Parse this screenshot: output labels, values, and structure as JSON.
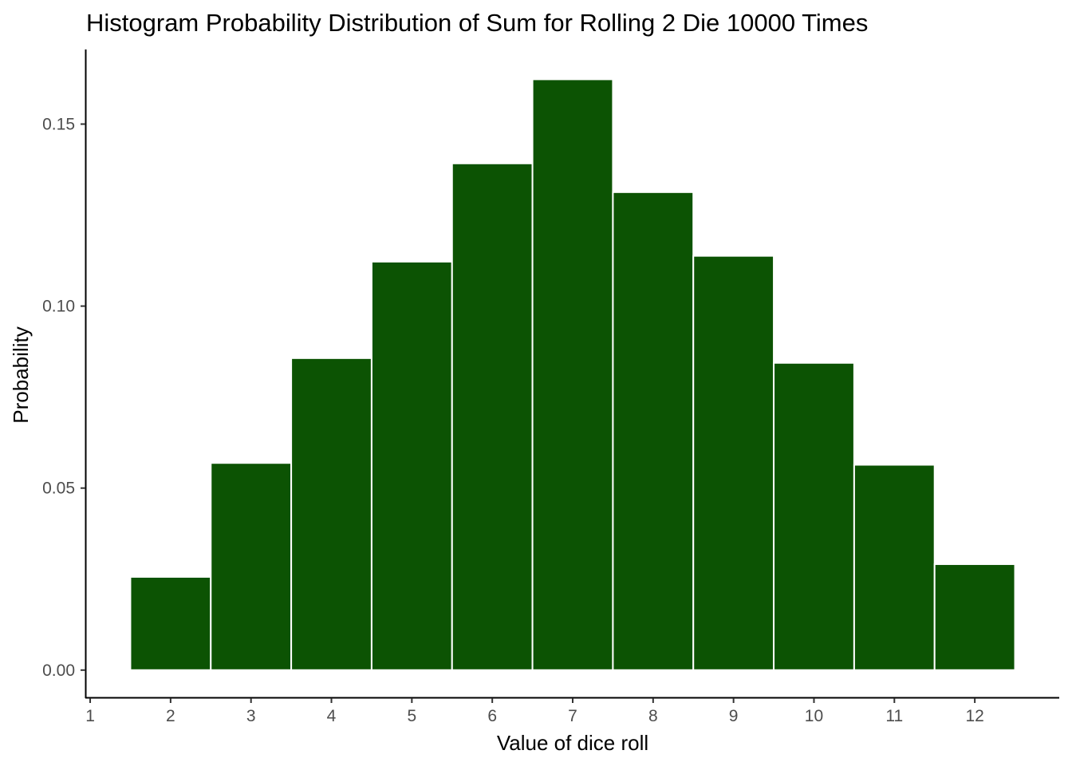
{
  "chart_data": {
    "type": "bar",
    "title": "Histogram Probability Distribution of Sum for Rolling 2 Die 10000 Times",
    "xlabel": "Value of dice roll",
    "ylabel": "Probability",
    "x_ticks": [
      "1",
      "2",
      "3",
      "4",
      "5",
      "6",
      "7",
      "8",
      "9",
      "10",
      "11",
      "12"
    ],
    "xlim": [
      0.95,
      13.05
    ],
    "ylim": [
      -0.0075,
      0.1705
    ],
    "y_ticks": [
      {
        "value": 0.0,
        "label": "0.00"
      },
      {
        "value": 0.05,
        "label": "0.05"
      },
      {
        "value": 0.1,
        "label": "0.10"
      },
      {
        "value": 0.15,
        "label": "0.15"
      }
    ],
    "categories": [
      2,
      3,
      4,
      5,
      6,
      7,
      8,
      9,
      10,
      11,
      12
    ],
    "values": [
      0.0256,
      0.0569,
      0.0857,
      0.1122,
      0.1392,
      0.1623,
      0.1313,
      0.1138,
      0.0844,
      0.0564,
      0.0291
    ],
    "bar_color": "#0c5303",
    "bar_edge_color": "#ffffff",
    "grid": false,
    "legend": "none"
  }
}
